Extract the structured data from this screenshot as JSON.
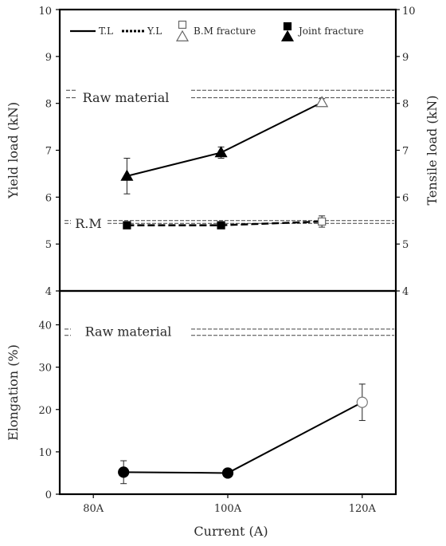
{
  "chart_data": [
    {
      "panel": "top",
      "type": "line",
      "ylabel_left": "Yield load (kN)",
      "ylabel_right": "Tensile load (kN)",
      "ylim": [
        4,
        10
      ],
      "yticks": [
        "4",
        "5",
        "6",
        "7",
        "8",
        "9",
        "10"
      ],
      "legend": {
        "placement": "top",
        "entries": [
          "T.L",
          "Y.L",
          "B.M fracture",
          "Joint fracture"
        ]
      },
      "reference_lines": [
        {
          "label": "Raw material",
          "values": [
            8.28,
            8.12
          ]
        },
        {
          "label": "R.M",
          "values": [
            5.5,
            5.44
          ]
        }
      ],
      "series": [
        {
          "name": "T.L",
          "x": [
            85,
            99,
            114
          ],
          "y": [
            6.45,
            6.95,
            8.02
          ],
          "err": [
            0.38,
            0.12,
            0.08
          ],
          "markers": [
            "joint",
            "joint",
            "bm"
          ]
        },
        {
          "name": "Y.L",
          "x": [
            85,
            99,
            114
          ],
          "y": [
            5.4,
            5.4,
            5.48
          ],
          "err": [
            0.05,
            0.05,
            0.12
          ],
          "markers": [
            "joint",
            "joint",
            "bm"
          ]
        }
      ]
    },
    {
      "panel": "bottom",
      "type": "line",
      "ylabel": "Elongation (%)",
      "xlabel": "Current (A)",
      "xlim": [
        75,
        125
      ],
      "xticks": [
        80,
        100,
        120
      ],
      "xtick_labels": [
        "80A",
        "100A",
        "120A"
      ],
      "ylim": [
        0,
        48
      ],
      "yticks": [
        "0",
        "10",
        "20",
        "30",
        "40"
      ],
      "reference_lines": [
        {
          "label": "Raw material",
          "values": [
            39,
            37.5
          ]
        }
      ],
      "series": [
        {
          "x": [
            84.5,
            100,
            120
          ],
          "y": [
            5.2,
            5.0,
            21.7
          ],
          "err": [
            2.7,
            0.8,
            4.3
          ],
          "markers": [
            "joint",
            "joint",
            "bm"
          ]
        }
      ]
    }
  ]
}
